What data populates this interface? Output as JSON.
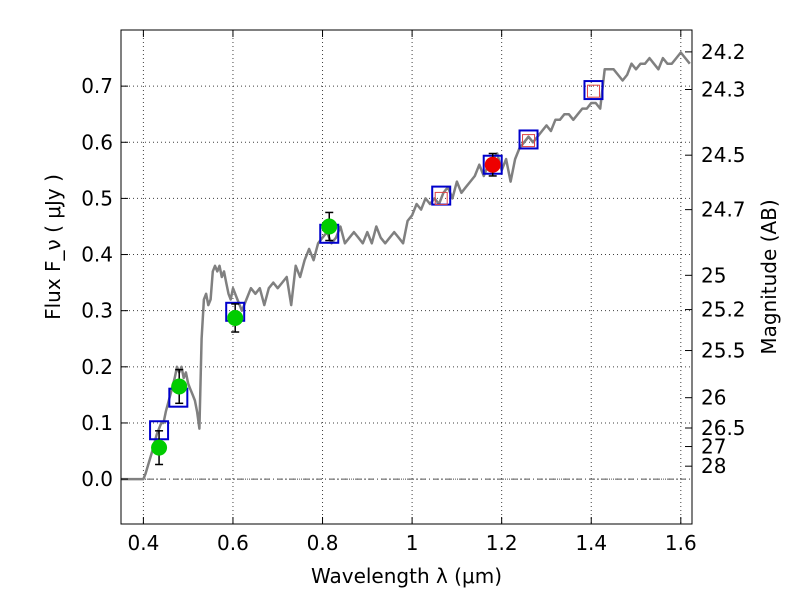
{
  "chart_data": {
    "type": "scatter",
    "title": "",
    "xlabel": "Wavelength  λ (μm)",
    "ylabel": "Flux  F_ν  ( μJy )",
    "ylabel_right": "Magnitude (AB)",
    "xlim": [
      0.35,
      1.625
    ],
    "ylim": [
      -0.08,
      0.8
    ],
    "grid": true,
    "x_ticks": [
      0.4,
      0.6,
      0.8,
      1.0,
      1.2,
      1.4,
      1.6
    ],
    "x_tick_labels": [
      "0.4",
      "0.6",
      "0.8",
      "1",
      "1.2",
      "1.4",
      "1.6"
    ],
    "y_ticks": [
      0.0,
      0.1,
      0.2,
      0.3,
      0.4,
      0.5,
      0.6,
      0.7
    ],
    "y_tick_labels": [
      "0.0",
      "0.1",
      "0.2",
      "0.3",
      "0.4",
      "0.5",
      "0.6",
      "0.7"
    ],
    "right_ticks": [
      {
        "label": "24.2",
        "flux": 0.761
      },
      {
        "label": "24.3",
        "flux": 0.694
      },
      {
        "label": "24.5",
        "flux": 0.577
      },
      {
        "label": "24.7",
        "flux": 0.48
      },
      {
        "label": "25",
        "flux": 0.363
      },
      {
        "label": "25.2",
        "flux": 0.302
      },
      {
        "label": "25.5",
        "flux": 0.229
      },
      {
        "label": "26",
        "flux": 0.145
      },
      {
        "label": "26.5",
        "flux": 0.091
      },
      {
        "label": "27",
        "flux": 0.058
      },
      {
        "label": "28",
        "flux": 0.023
      }
    ],
    "series": [
      {
        "kind": "line",
        "color": "#808080",
        "x": [
          0.35,
          0.4,
          0.405,
          0.42,
          0.43,
          0.44,
          0.445,
          0.45,
          0.46,
          0.47,
          0.475,
          0.48,
          0.485,
          0.49,
          0.495,
          0.5,
          0.505,
          0.51,
          0.515,
          0.52,
          0.525,
          0.53,
          0.535,
          0.54,
          0.545,
          0.55,
          0.555,
          0.56,
          0.565,
          0.57,
          0.575,
          0.58,
          0.585,
          0.59,
          0.595,
          0.6,
          0.605,
          0.61,
          0.62,
          0.63,
          0.64,
          0.65,
          0.66,
          0.67,
          0.68,
          0.69,
          0.7,
          0.71,
          0.72,
          0.73,
          0.74,
          0.75,
          0.76,
          0.77,
          0.78,
          0.79,
          0.8,
          0.81,
          0.82,
          0.83,
          0.84,
          0.85,
          0.86,
          0.87,
          0.88,
          0.89,
          0.9,
          0.91,
          0.92,
          0.93,
          0.94,
          0.95,
          0.96,
          0.97,
          0.98,
          0.99,
          1.0,
          1.01,
          1.02,
          1.03,
          1.04,
          1.05,
          1.06,
          1.07,
          1.08,
          1.09,
          1.1,
          1.11,
          1.12,
          1.13,
          1.14,
          1.15,
          1.16,
          1.17,
          1.18,
          1.19,
          1.2,
          1.21,
          1.22,
          1.23,
          1.24,
          1.25,
          1.26,
          1.27,
          1.28,
          1.29,
          1.3,
          1.31,
          1.32,
          1.33,
          1.34,
          1.35,
          1.36,
          1.37,
          1.38,
          1.39,
          1.4,
          1.41,
          1.42,
          1.43,
          1.44,
          1.45,
          1.46,
          1.47,
          1.48,
          1.49,
          1.5,
          1.51,
          1.52,
          1.53,
          1.54,
          1.55,
          1.56,
          1.57,
          1.58,
          1.59,
          1.6,
          1.61,
          1.62
        ],
        "y": [
          0.0,
          0.0,
          0.01,
          0.05,
          0.08,
          0.1,
          0.1,
          0.12,
          0.15,
          0.18,
          0.2,
          0.19,
          0.2,
          0.18,
          0.19,
          0.17,
          0.16,
          0.15,
          0.14,
          0.12,
          0.09,
          0.25,
          0.32,
          0.33,
          0.31,
          0.32,
          0.37,
          0.38,
          0.37,
          0.38,
          0.36,
          0.37,
          0.35,
          0.33,
          0.32,
          0.34,
          0.33,
          0.32,
          0.3,
          0.32,
          0.34,
          0.33,
          0.34,
          0.31,
          0.34,
          0.35,
          0.34,
          0.35,
          0.36,
          0.31,
          0.38,
          0.36,
          0.39,
          0.41,
          0.39,
          0.42,
          0.43,
          0.44,
          0.42,
          0.43,
          0.45,
          0.42,
          0.43,
          0.44,
          0.43,
          0.42,
          0.44,
          0.42,
          0.45,
          0.43,
          0.42,
          0.43,
          0.44,
          0.43,
          0.42,
          0.46,
          0.47,
          0.49,
          0.48,
          0.5,
          0.49,
          0.5,
          0.49,
          0.51,
          0.52,
          0.5,
          0.53,
          0.51,
          0.52,
          0.53,
          0.54,
          0.56,
          0.54,
          0.56,
          0.57,
          0.58,
          0.55,
          0.57,
          0.53,
          0.57,
          0.59,
          0.6,
          0.61,
          0.6,
          0.61,
          0.62,
          0.63,
          0.62,
          0.64,
          0.64,
          0.65,
          0.65,
          0.64,
          0.65,
          0.66,
          0.66,
          0.67,
          0.67,
          0.66,
          0.73,
          0.73,
          0.73,
          0.72,
          0.71,
          0.72,
          0.74,
          0.73,
          0.74,
          0.74,
          0.75,
          0.74,
          0.73,
          0.75,
          0.74,
          0.74,
          0.75,
          0.76,
          0.75,
          0.74
        ]
      },
      {
        "kind": "squares",
        "color": "#0000cc",
        "x": [
          0.435,
          0.478,
          0.605,
          0.815,
          1.065,
          1.18,
          1.26,
          1.405
        ],
        "y": [
          0.087,
          0.145,
          0.298,
          0.437,
          0.505,
          0.56,
          0.605,
          0.693
        ]
      },
      {
        "kind": "markers",
        "color": "#00cc00",
        "x": [
          0.435,
          0.48,
          0.605,
          0.815
        ],
        "y": [
          0.056,
          0.165,
          0.287,
          0.45
        ],
        "yerr": [
          0.03,
          0.03,
          0.025,
          0.025
        ]
      },
      {
        "kind": "markers",
        "color": "#ee0000",
        "x": [
          1.18
        ],
        "y": [
          0.56
        ],
        "yerr": [
          0.02
        ]
      },
      {
        "kind": "small_squares",
        "color": "#dd4444",
        "x": [
          1.065,
          1.26,
          1.405
        ],
        "y": [
          0.5,
          0.603,
          0.691
        ]
      }
    ]
  }
}
